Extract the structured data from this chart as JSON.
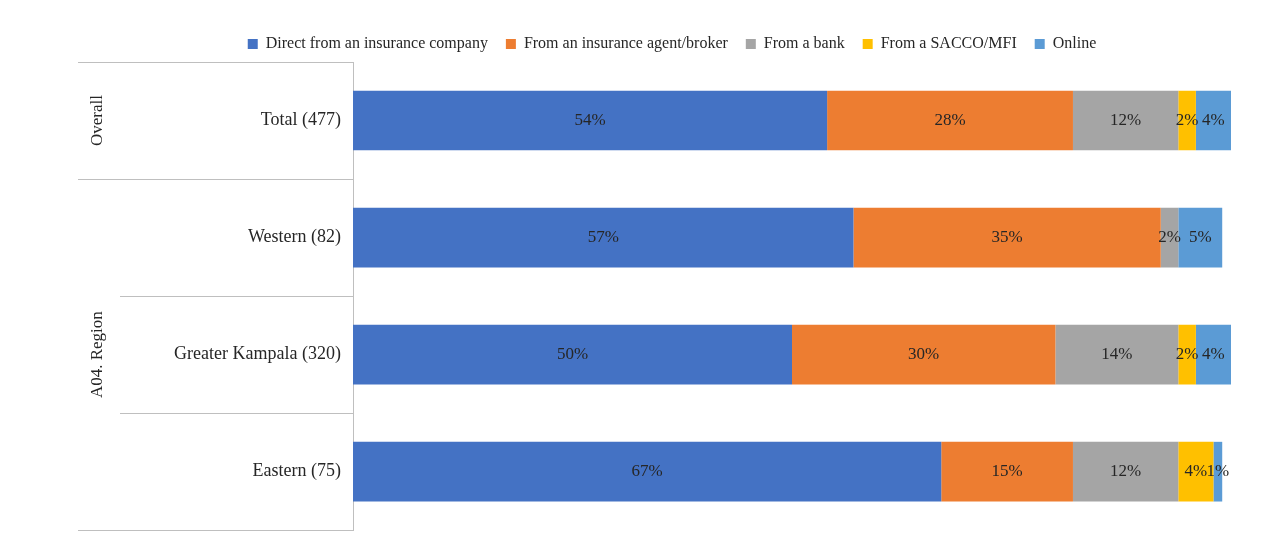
{
  "chart_data": {
    "type": "bar",
    "orientation": "horizontal",
    "stacked": true,
    "legend": "top",
    "grid": false,
    "categories": [
      "Total (477)",
      "Western (82)",
      "Greater Kampala (320)",
      "Eastern (75)"
    ],
    "series": [
      {
        "name": "Direct from an insurance company",
        "color": "#4472c4",
        "values": [
          54,
          57,
          50,
          67
        ],
        "value_labels": [
          "54%",
          "57%",
          "50%",
          "67%"
        ]
      },
      {
        "name": "From an insurance agent/broker",
        "color": "#ed7d31",
        "values": [
          28,
          35,
          30,
          15
        ],
        "value_labels": [
          "28%",
          "35%",
          "30%",
          "15%"
        ]
      },
      {
        "name": "From a bank",
        "color": "#a5a5a5",
        "values": [
          12,
          2,
          14,
          12
        ],
        "value_labels": [
          "12%",
          "2%",
          "14%",
          "12%"
        ]
      },
      {
        "name": "From a SACCO/MFI",
        "color": "#ffc000",
        "values": [
          2,
          null,
          2,
          4
        ],
        "value_labels": [
          "2%",
          null,
          "2%",
          "4%"
        ]
      },
      {
        "name": "Online",
        "color": "#5b9bd5",
        "values": [
          4,
          5,
          4,
          1
        ],
        "value_labels": [
          "4%",
          "5%",
          "4%",
          "1%"
        ]
      }
    ],
    "annotations": [
      "Overall",
      "A04. Region"
    ]
  }
}
